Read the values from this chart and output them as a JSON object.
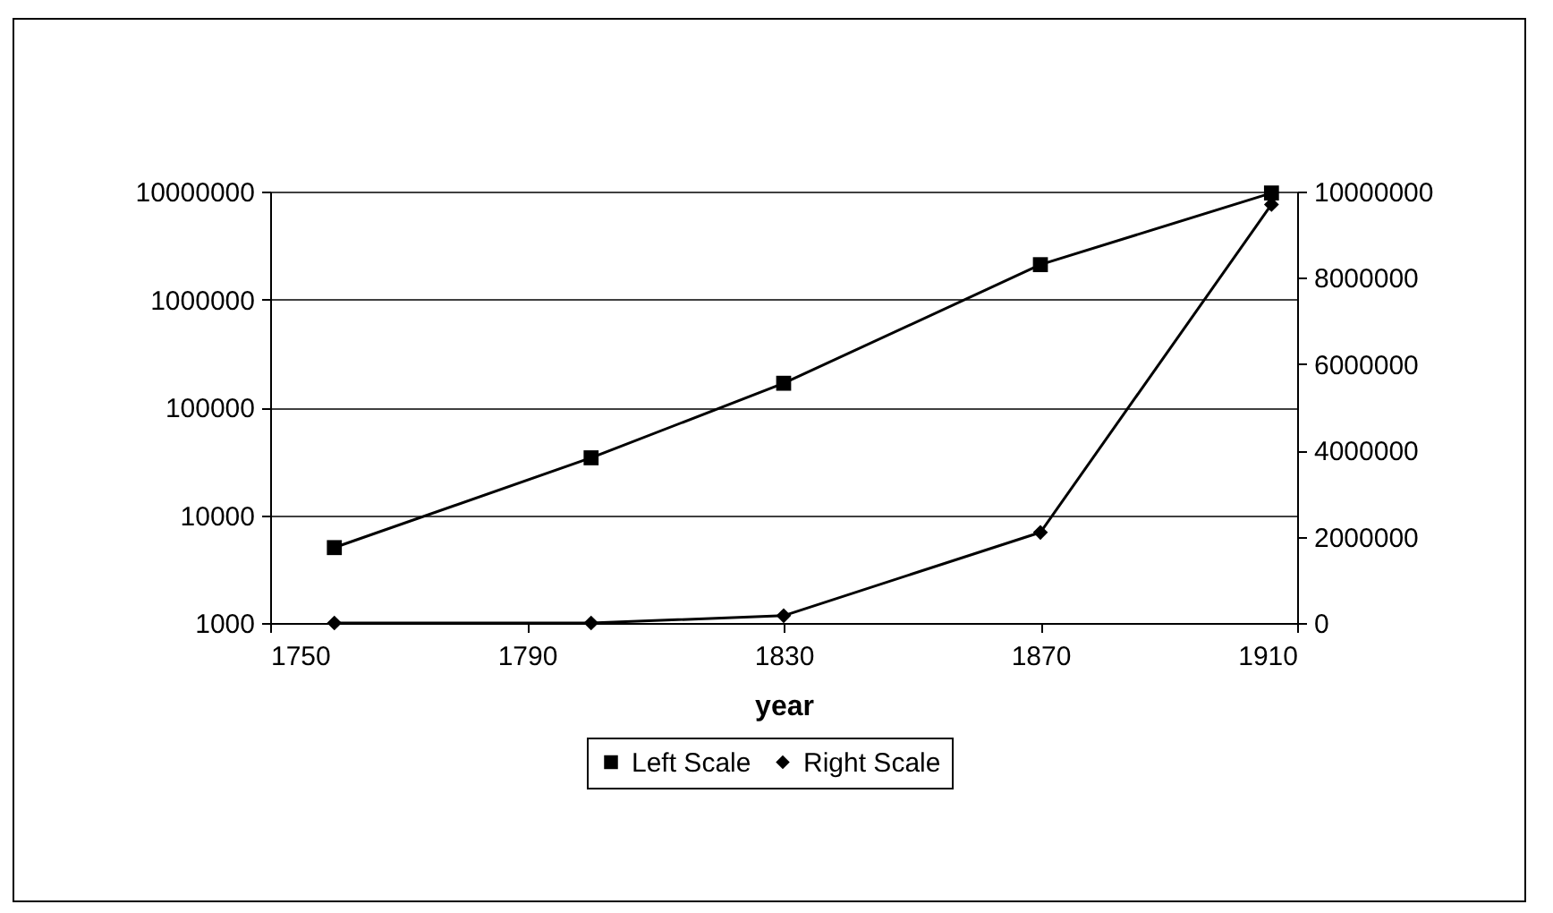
{
  "chart_data": {
    "type": "line",
    "xlabel": "year",
    "x": [
      1760,
      1800,
      1830,
      1870,
      1906
    ],
    "series": [
      {
        "name": "Left Scale",
        "color": "#000000",
        "marker": "square",
        "values": [
          5000,
          34000,
          167000,
          2100000,
          9700000
        ]
      },
      {
        "name": "Right Scale",
        "color": "#000000",
        "marker": "diamond",
        "axis": "y2",
        "values": [
          0,
          0,
          170000,
          2100000,
          9700000
        ]
      }
    ],
    "xlim": [
      1750,
      1910
    ],
    "xticks": [
      1750,
      1790,
      1830,
      1870,
      1910
    ],
    "ylim": [
      1000,
      10000000
    ],
    "yticks": [
      1000,
      10000,
      100000,
      1000000,
      10000000
    ],
    "y2lim": [
      0,
      10000000
    ],
    "y2ticks": [
      0,
      2000000,
      4000000,
      6000000,
      8000000,
      10000000
    ],
    "log": "y",
    "grid": "y",
    "legend": "bottom",
    "line_style": "solid"
  }
}
